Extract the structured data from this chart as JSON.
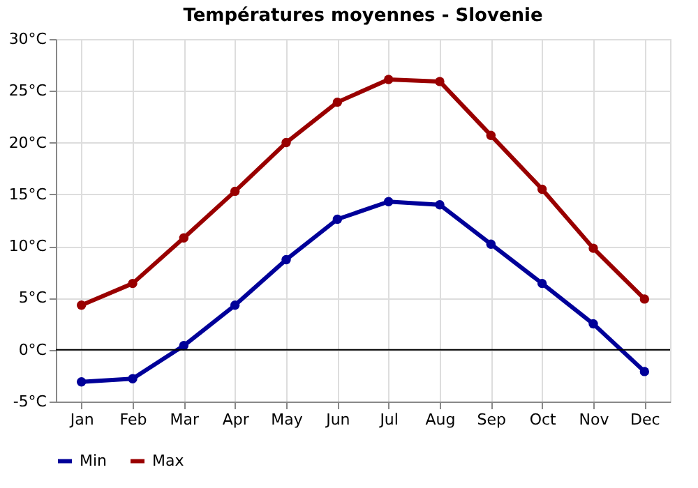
{
  "chart_data": {
    "type": "line",
    "title": "Températures moyennes - Slovenie",
    "categories": [
      "Jan",
      "Feb",
      "Mar",
      "Apr",
      "May",
      "Jun",
      "Jul",
      "Aug",
      "Sep",
      "Oct",
      "Nov",
      "Dec"
    ],
    "series": [
      {
        "name": "Min",
        "color": "#000099",
        "values": [
          -3.1,
          -2.8,
          0.4,
          4.3,
          8.7,
          12.6,
          14.3,
          14.0,
          10.2,
          6.4,
          2.5,
          -2.1
        ]
      },
      {
        "name": "Max",
        "color": "#990000",
        "values": [
          4.3,
          6.4,
          10.8,
          15.3,
          20.0,
          23.9,
          26.1,
          25.9,
          20.7,
          15.5,
          9.8,
          4.9
        ]
      }
    ],
    "ylim": [
      -5,
      30
    ],
    "yticks": [
      {
        "value": -5,
        "label": "-5°C"
      },
      {
        "value": 0,
        "label": "0°C"
      },
      {
        "value": 5,
        "label": "5°C"
      },
      {
        "value": 10,
        "label": "10°C"
      },
      {
        "value": 15,
        "label": "15°C"
      },
      {
        "value": 20,
        "label": "20°C"
      },
      {
        "value": 25,
        "label": "25°C"
      },
      {
        "value": 30,
        "label": "30°C"
      }
    ],
    "ref_lines": [
      {
        "axis": "y",
        "value": 0,
        "color": "#000000"
      }
    ],
    "grid": true,
    "legend": "bottom left",
    "marker": "circle",
    "line_style": "solid"
  }
}
